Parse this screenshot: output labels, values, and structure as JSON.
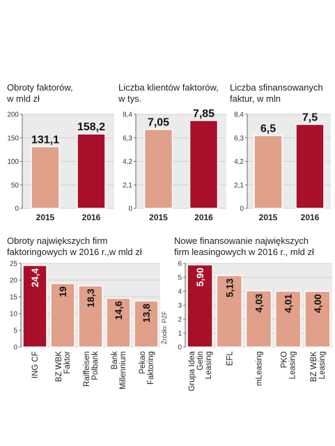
{
  "source": "Źródło: PZF",
  "colors": {
    "dark": "#a8102a",
    "light": "#e0a08a",
    "plot_bg": "#ecebeb"
  },
  "chart_data": [
    {
      "type": "bar",
      "title": "Obroty faktorów,\nw mld zł",
      "categories": [
        "2015",
        "2016"
      ],
      "values": [
        131.1,
        158.2
      ],
      "value_labels": [
        "131,1",
        "158,2"
      ],
      "ylim": [
        0,
        200
      ],
      "yticks": [
        "0",
        "50",
        "100",
        "150",
        "200"
      ],
      "highlight": [
        1
      ]
    },
    {
      "type": "bar",
      "title": "Liczba klientów faktorów,\nw tys.",
      "categories": [
        "2015",
        "2016"
      ],
      "values": [
        7.05,
        7.85
      ],
      "value_labels": [
        "7,05",
        "7,85"
      ],
      "ylim": [
        0,
        8.4
      ],
      "yticks": [
        "0",
        "2,1",
        "4,2",
        "6,3",
        "8,4"
      ],
      "highlight": [
        1
      ]
    },
    {
      "type": "bar",
      "title": "Liczba sfinansowanych\nfaktur, w mln",
      "categories": [
        "2015",
        "2016"
      ],
      "values": [
        6.5,
        7.5
      ],
      "value_labels": [
        "6,5",
        "7,5"
      ],
      "ylim": [
        0,
        8.4
      ],
      "yticks": [
        "0",
        "2,1",
        "4,2",
        "6,3",
        "8,4"
      ],
      "highlight": [
        1
      ]
    },
    {
      "type": "bar",
      "title": "Obroty największych firm\nfaktoringowych w 2016 r.,w mld zł",
      "categories": [
        "ING CF",
        "BZ WBK\nFaktor",
        "Raiffeisen\nPolbank",
        "Bank\nMillennium",
        "Pekao\nFaktoring"
      ],
      "values": [
        24.4,
        19,
        18.3,
        14.6,
        13.8
      ],
      "value_labels": [
        "24,4",
        "19",
        "18,3",
        "14,6",
        "13,8"
      ],
      "ylim": [
        0,
        25
      ],
      "yticks": [
        "0",
        "5",
        "10",
        "15",
        "20",
        "25"
      ],
      "highlight": [
        0
      ]
    },
    {
      "type": "bar",
      "title": "Nowe finansowanie największych\nfirm leasingowych w 2016 r., mld zł",
      "categories": [
        "Grupa Idea\nGetin\nLeasing",
        "EFL",
        "mLeasing",
        "PKO\nLeasing",
        "BZ WBK\nLeasing"
      ],
      "values": [
        5.9,
        5.13,
        4.03,
        4.01,
        4.0
      ],
      "value_labels": [
        "5,90",
        "5,13",
        "4,03",
        "4,01",
        "4,00"
      ],
      "ylim": [
        0,
        6
      ],
      "yticks": [
        "0",
        "1",
        "2",
        "3",
        "4",
        "5",
        "6"
      ],
      "highlight": [
        0
      ]
    }
  ]
}
